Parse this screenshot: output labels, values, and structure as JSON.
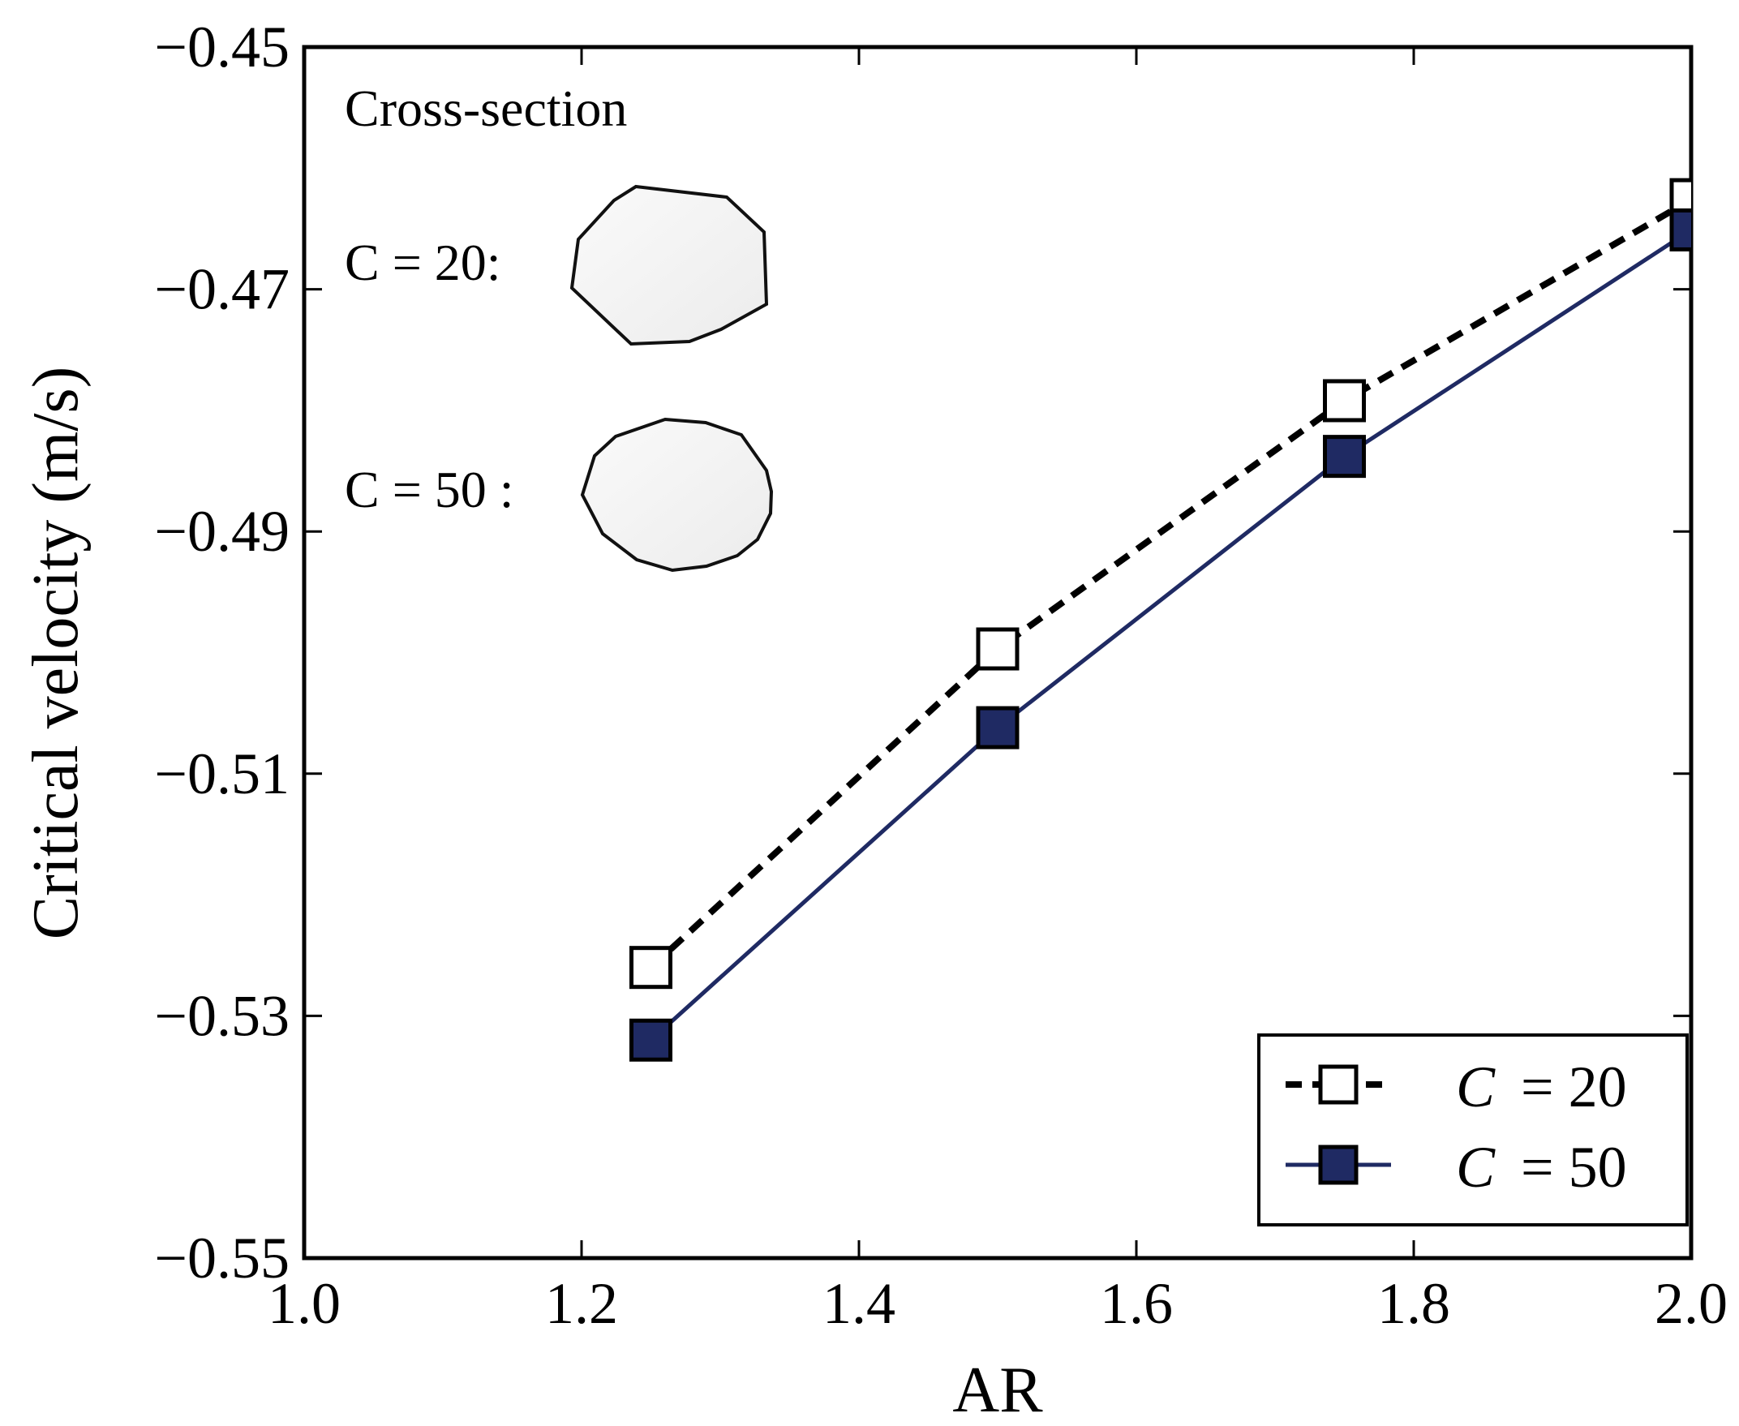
{
  "chart_data": {
    "type": "line",
    "title": "",
    "xlabel": "AR",
    "ylabel": "Critical velocity (m/s)",
    "xlim": [
      1.0,
      2.0
    ],
    "ylim": [
      -0.55,
      -0.45
    ],
    "xticks": [
      1.0,
      1.2,
      1.4,
      1.6,
      1.8,
      2.0
    ],
    "xtick_labels": [
      "1.0",
      "1.2",
      "1.4",
      "1.6",
      "1.8",
      "2.0"
    ],
    "yticks": [
      -0.55,
      -0.53,
      -0.51,
      -0.49,
      -0.47,
      -0.45
    ],
    "ytick_labels": [
      "−0.55",
      "−0.53",
      "−0.51",
      "−0.49",
      "−0.47",
      "−0.45"
    ],
    "grid": false,
    "legend_position": "bottom-right",
    "series": [
      {
        "name": "C = 20",
        "legend_var": "C",
        "legend_value": "= 20",
        "x": [
          1.25,
          1.5,
          1.75,
          2.0
        ],
        "y": [
          -0.526,
          -0.4997,
          -0.4792,
          -0.4626
        ],
        "line_style": "dashed",
        "line_color": "#000000",
        "marker": "open-square",
        "marker_fill": "#ffffff",
        "marker_edge": "#000000"
      },
      {
        "name": "C = 50",
        "legend_var": "C",
        "legend_value": "= 50",
        "x": [
          1.25,
          1.5,
          1.75,
          2.0
        ],
        "y": [
          -0.532,
          -0.5062,
          -0.4838,
          -0.4651
        ],
        "line_style": "solid",
        "line_color": "#1f2a63",
        "marker": "filled-square",
        "marker_fill": "#1f2a63",
        "marker_edge": "#000000"
      }
    ],
    "annotations": {
      "heading": "Cross-section",
      "shape_labels": [
        "C = 20:",
        "C = 50 :"
      ]
    }
  }
}
